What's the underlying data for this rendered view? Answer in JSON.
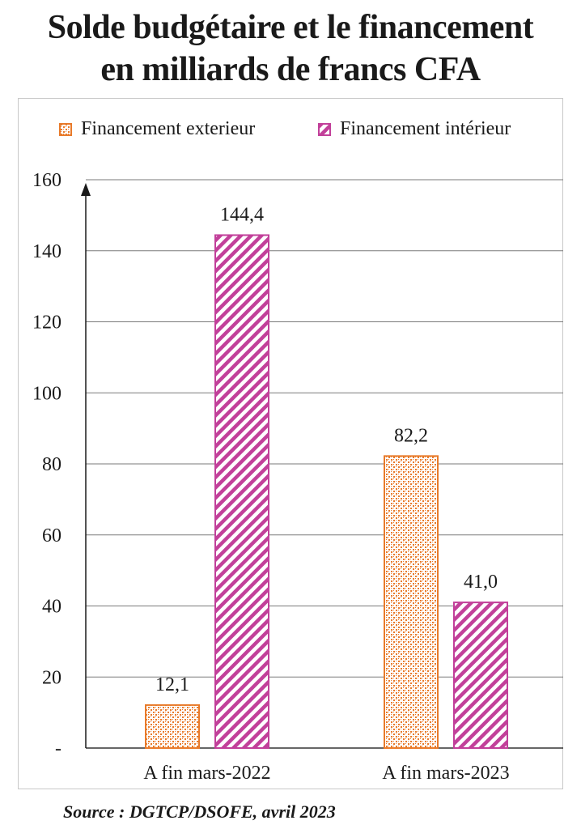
{
  "title_line1": "Solde budgétaire et le financement",
  "title_line2": "en milliards de francs CFA",
  "source": "Source : DGTCP/DSOFE, avril 2023",
  "chart_data": {
    "type": "bar",
    "categories": [
      "A fin mars-2022",
      "A fin mars-2023"
    ],
    "series": [
      {
        "name": "Financement exterieur",
        "values": [
          12.1,
          82.2
        ],
        "labels": [
          "12,1",
          "82,2"
        ],
        "color": "#e87a2a",
        "pattern": "dotted"
      },
      {
        "name": "Financement intérieur",
        "values": [
          144.4,
          41.0
        ],
        "labels": [
          "144,4",
          "41,0"
        ],
        "color": "#c2409a",
        "pattern": "diagonal-stripes"
      }
    ],
    "y_ticks": [
      "-",
      "20",
      "40",
      "60",
      "80",
      "100",
      "120",
      "140",
      "160"
    ],
    "ylim": [
      0,
      160
    ],
    "grid": true,
    "legend": "top"
  }
}
